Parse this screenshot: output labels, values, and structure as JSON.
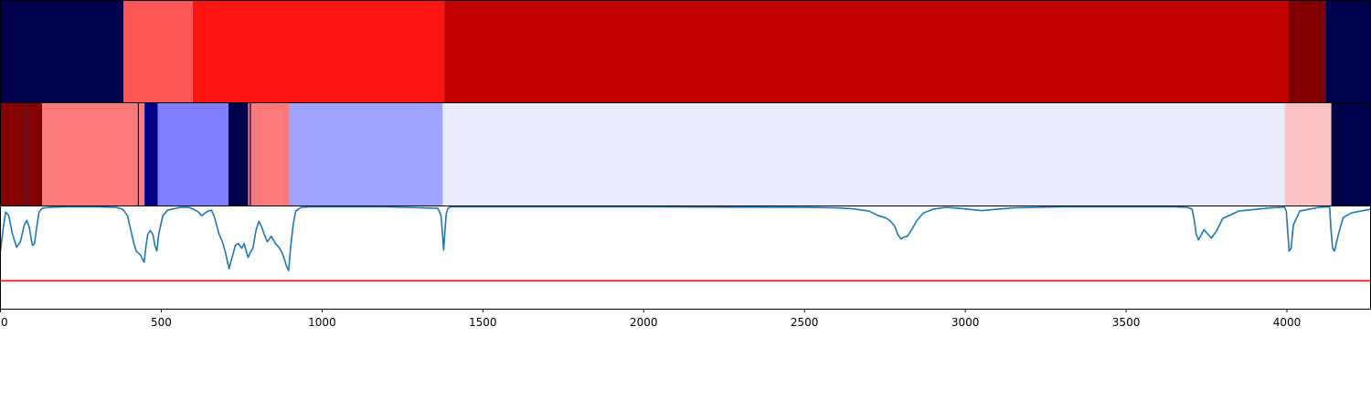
{
  "chart_data": {
    "type": "heatmap",
    "xlim": [
      0,
      4260
    ],
    "xticks": [
      0,
      500,
      1000,
      1500,
      2000,
      2500,
      3000,
      3500,
      4000
    ],
    "xtick_labels": [
      "0",
      "500",
      "1000",
      "1500",
      "2000",
      "2500",
      "3000",
      "3500",
      "4000"
    ],
    "top_band": {
      "segments": [
        {
          "start": 0,
          "end": 383,
          "color": "#00004c"
        },
        {
          "start": 383,
          "end": 598,
          "color": "#ff5555"
        },
        {
          "start": 598,
          "end": 1380,
          "color": "#ff1414"
        },
        {
          "start": 1380,
          "end": 4003,
          "color": "#c20000"
        },
        {
          "start": 4003,
          "end": 4120,
          "color": "#800000"
        },
        {
          "start": 4120,
          "end": 4260,
          "color": "#00004c"
        }
      ]
    },
    "middle_band": {
      "segments": [
        {
          "start": 0,
          "end": 80,
          "color": "#850000"
        },
        {
          "start": 80,
          "end": 84,
          "color": "#00004c"
        },
        {
          "start": 84,
          "end": 130,
          "color": "#850000"
        },
        {
          "start": 130,
          "end": 427,
          "color": "#ff7a7a"
        },
        {
          "start": 427,
          "end": 431,
          "color": "#00004c"
        },
        {
          "start": 431,
          "end": 448,
          "color": "#ff7a7a"
        },
        {
          "start": 448,
          "end": 489,
          "color": "#00008a"
        },
        {
          "start": 489,
          "end": 709,
          "color": "#7e7eff"
        },
        {
          "start": 709,
          "end": 712,
          "color": "#00004c"
        },
        {
          "start": 712,
          "end": 770,
          "color": "#00004c"
        },
        {
          "start": 770,
          "end": 775,
          "color": "#ff7a7a"
        },
        {
          "start": 775,
          "end": 779,
          "color": "#00004c"
        },
        {
          "start": 779,
          "end": 898,
          "color": "#ff7a7a"
        },
        {
          "start": 898,
          "end": 1375,
          "color": "#a1a1ff"
        },
        {
          "start": 1375,
          "end": 3993,
          "color": "#ebebff"
        },
        {
          "start": 3993,
          "end": 4138,
          "color": "#ffc2c2"
        },
        {
          "start": 4138,
          "end": 4260,
          "color": "#00004c"
        }
      ]
    },
    "spectrum": {
      "color": "#1f77b4",
      "ylim": [
        -0.1,
        1.0
      ],
      "x": [
        0,
        8,
        16,
        26,
        36,
        50,
        62,
        74,
        82,
        90,
        96,
        100,
        106,
        112,
        120,
        130,
        150,
        200,
        300,
        360,
        380,
        395,
        405,
        415,
        422,
        428,
        435,
        442,
        447,
        452,
        458,
        466,
        474,
        480,
        486,
        493,
        505,
        520,
        560,
        585,
        600,
        615,
        626,
        636,
        646,
        656,
        664,
        672,
        680,
        690,
        700,
        706,
        711,
        716,
        722,
        730,
        740,
        750,
        758,
        764,
        770,
        776,
        785,
        795,
        804,
        812,
        820,
        830,
        842,
        855,
        866,
        876,
        884,
        890,
        896,
        902,
        910,
        918,
        935,
        960,
        1000,
        1200,
        1360,
        1370,
        1374,
        1378,
        1382,
        1386,
        1392,
        1400,
        1500,
        2000,
        2500,
        2600,
        2650,
        2700,
        2730,
        2750,
        2765,
        2780,
        2790,
        2800,
        2810,
        2820,
        2835,
        2850,
        2870,
        2900,
        2940,
        2980,
        3050,
        3150,
        3300,
        3500,
        3650,
        3690,
        3705,
        3712,
        3718,
        3725,
        3733,
        3742,
        3752,
        3765,
        3782,
        3800,
        3850,
        3950,
        3985,
        3992,
        3998,
        4002,
        4007,
        4013,
        4020,
        4040,
        4100,
        4128,
        4133,
        4137,
        4142,
        4148,
        4160,
        4175,
        4200,
        4260
      ],
      "y": [
        0.52,
        0.75,
        0.94,
        0.9,
        0.72,
        0.56,
        0.62,
        0.8,
        0.85,
        0.77,
        0.64,
        0.58,
        0.6,
        0.76,
        0.94,
        0.98,
        0.99,
        0.995,
        0.995,
        0.99,
        0.97,
        0.9,
        0.75,
        0.6,
        0.52,
        0.5,
        0.48,
        0.43,
        0.4,
        0.56,
        0.7,
        0.74,
        0.7,
        0.58,
        0.52,
        0.72,
        0.9,
        0.96,
        0.99,
        0.99,
        0.97,
        0.94,
        0.9,
        0.93,
        0.95,
        0.96,
        0.9,
        0.8,
        0.7,
        0.62,
        0.5,
        0.4,
        0.33,
        0.4,
        0.47,
        0.58,
        0.6,
        0.55,
        0.6,
        0.52,
        0.45,
        0.5,
        0.55,
        0.75,
        0.84,
        0.78,
        0.7,
        0.62,
        0.68,
        0.6,
        0.56,
        0.5,
        0.42,
        0.35,
        0.31,
        0.55,
        0.8,
        0.95,
        0.99,
        0.995,
        0.995,
        0.995,
        0.98,
        0.9,
        0.72,
        0.53,
        0.74,
        0.92,
        0.98,
        0.995,
        0.995,
        0.995,
        0.99,
        0.985,
        0.975,
        0.95,
        0.9,
        0.88,
        0.85,
        0.79,
        0.7,
        0.65,
        0.67,
        0.68,
        0.76,
        0.85,
        0.93,
        0.97,
        0.99,
        0.98,
        0.955,
        0.985,
        0.995,
        0.995,
        0.995,
        0.99,
        0.97,
        0.85,
        0.7,
        0.64,
        0.69,
        0.75,
        0.71,
        0.66,
        0.74,
        0.87,
        0.95,
        0.985,
        0.99,
        0.995,
        0.95,
        0.75,
        0.52,
        0.55,
        0.8,
        0.95,
        0.99,
        0.995,
        0.99,
        0.75,
        0.55,
        0.52,
        0.7,
        0.88,
        0.93,
        0.97,
        0.985,
        0.99
      ],
      "reference_line": {
        "y": 0.2,
        "color": "#ff0000"
      }
    }
  }
}
